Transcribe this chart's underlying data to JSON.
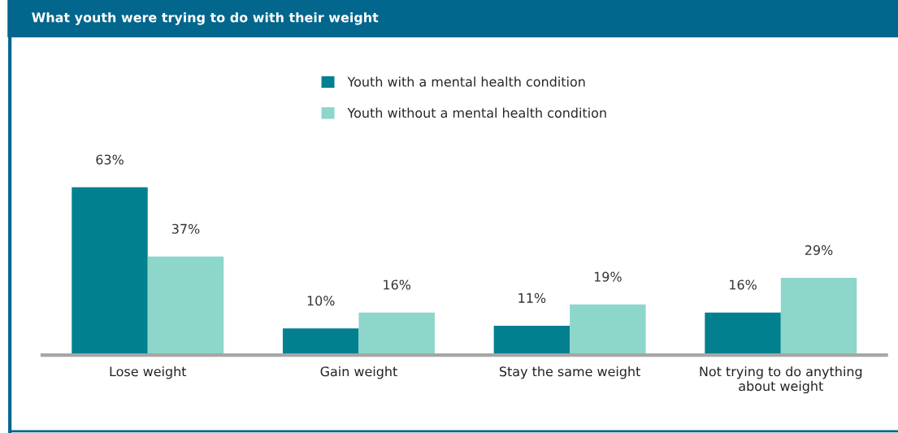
{
  "chart_data": {
    "type": "bar",
    "title": "What youth were trying to do with their weight",
    "categories": [
      "Lose weight",
      "Gain weight",
      "Stay the same weight",
      "Not trying to do anything\nabout weight"
    ],
    "series": [
      {
        "name": "Youth with a mental health condition",
        "color": "#028090",
        "values": [
          63,
          10,
          11,
          16
        ],
        "value_labels": [
          "63%",
          "10%",
          "11%",
          "16%"
        ]
      },
      {
        "name": "Youth without a mental health condition",
        "color": "#8dd6ca",
        "values": [
          37,
          16,
          19,
          29
        ],
        "value_labels": [
          "37%",
          "16%",
          "19%",
          "29%"
        ]
      }
    ],
    "legend": "top",
    "grid": false
  }
}
